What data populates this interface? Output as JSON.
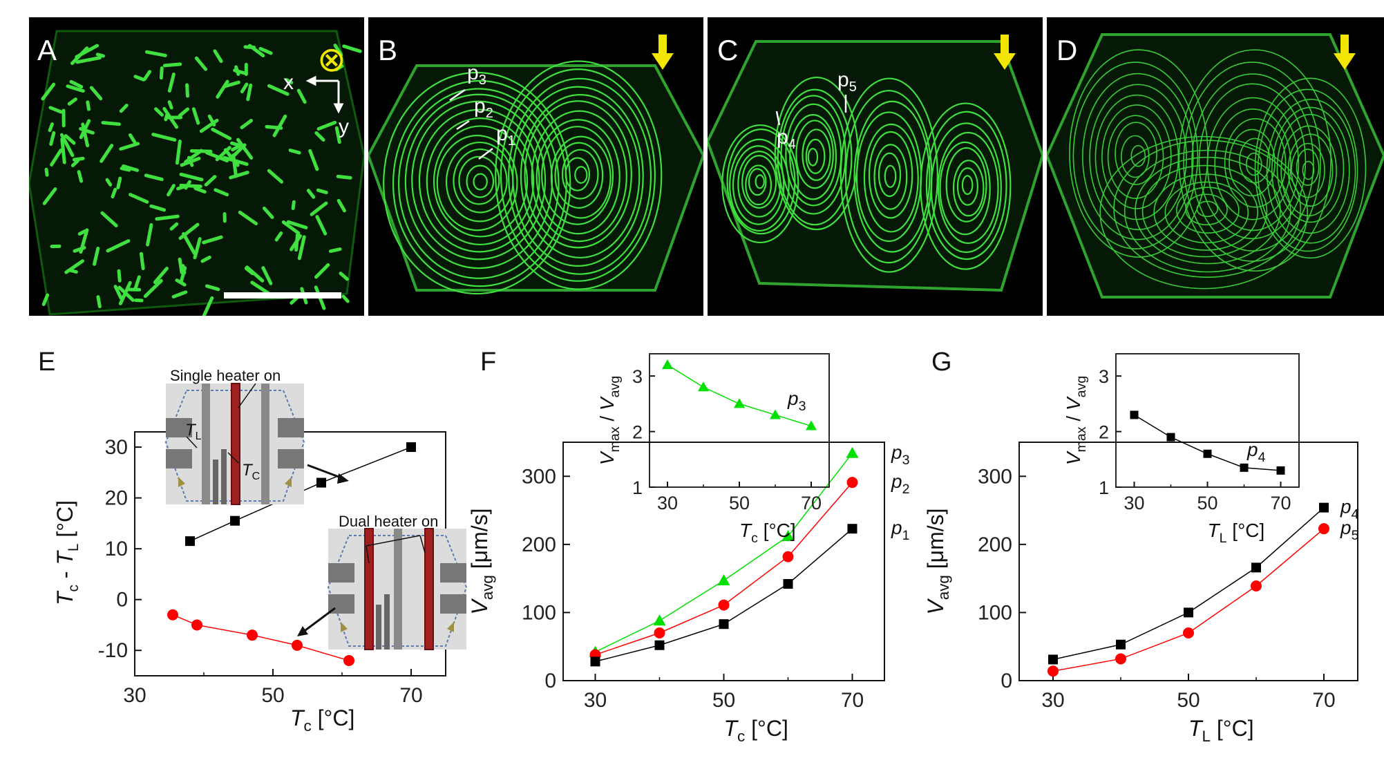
{
  "image_panels": [
    {
      "label": "A",
      "indicator": "⊗",
      "axes_labels": [
        "x",
        "y"
      ],
      "colors": {
        "streak": "#3fe03f",
        "indicator": "#f2e600"
      }
    },
    {
      "label": "B",
      "indicator": "arrow-down-icon",
      "point_labels": [
        {
          "base": "p",
          "sub": "3"
        },
        {
          "base": "p",
          "sub": "2"
        },
        {
          "base": "p",
          "sub": "1"
        }
      ]
    },
    {
      "label": "C",
      "indicator": "arrow-down-icon",
      "point_labels": [
        {
          "base": "p",
          "sub": "4"
        },
        {
          "base": "p",
          "sub": "5"
        }
      ]
    },
    {
      "label": "D",
      "indicator": "arrow-down-icon",
      "point_labels": []
    }
  ],
  "chart_data": [
    {
      "panel": "E",
      "type": "line",
      "xlabel": {
        "main": "T",
        "sub": "c",
        "unit": " [°C]"
      },
      "ylabel": {
        "a": "T",
        "a_sub": "c",
        "mid": " - ",
        "b": "T",
        "b_sub": "L",
        "unit": " [°C]"
      },
      "xlim": [
        30,
        75
      ],
      "ylim": [
        -15,
        33
      ],
      "xticks": [
        "30",
        "50",
        "70"
      ],
      "yticks": [
        "30",
        "20",
        "10",
        "0",
        "-10"
      ],
      "series": [
        {
          "color": "#000000",
          "marker": "square",
          "x": [
            38,
            44.5,
            57,
            70
          ],
          "y": [
            11.5,
            15.5,
            23,
            30
          ]
        },
        {
          "color": "#ff0000",
          "marker": "circle",
          "x": [
            35.5,
            39,
            47,
            53.5,
            61
          ],
          "y": [
            -3,
            -5,
            -7,
            -9,
            -12
          ]
        }
      ],
      "insets": [
        {
          "caption": "Single heater on",
          "tl": {
            "base": "T",
            "sub": "L"
          },
          "tc": {
            "base": "T",
            "sub": "C"
          }
        },
        {
          "caption": "Dual heater on"
        }
      ]
    },
    {
      "panel": "F",
      "type": "line",
      "xlabel": {
        "main": "T",
        "sub": "c",
        "unit": " [°C]"
      },
      "ylabel": {
        "main": "V",
        "sub": "avg",
        "unit": " [μm/s]"
      },
      "xlim": [
        25,
        75
      ],
      "ylim": [
        0,
        350
      ],
      "xticks": [
        "30",
        "50",
        "70"
      ],
      "yticks": [
        "0",
        "100",
        "200",
        "300"
      ],
      "x": [
        30,
        40,
        50,
        60,
        70
      ],
      "series": [
        {
          "name": "p3",
          "label": {
            "base": "p",
            "sub": "3"
          },
          "color": "#00e000",
          "marker": "triangle",
          "values": [
            42,
            88,
            147,
            212,
            334
          ]
        },
        {
          "name": "p2",
          "label": {
            "base": "p",
            "sub": "2"
          },
          "color": "#ff0000",
          "marker": "circle",
          "values": [
            38,
            70,
            111,
            182,
            291
          ]
        },
        {
          "name": "p1",
          "label": {
            "base": "p",
            "sub": "1"
          },
          "color": "#000000",
          "marker": "square",
          "values": [
            28,
            52,
            83,
            142,
            223
          ]
        }
      ],
      "inset": {
        "type": "line",
        "xlabel": {
          "main": "T",
          "sub": "c",
          "unit": " [°C]"
        },
        "ylabel": {
          "a": "V",
          "a_sub": "max",
          "mid": " / ",
          "b": "V",
          "b_sub": "avg"
        },
        "xlim": [
          25,
          75
        ],
        "ylim": [
          1,
          3.4
        ],
        "xticks": [
          "30",
          "50",
          "70"
        ],
        "yticks": [
          "1",
          "2",
          "3"
        ],
        "label": {
          "base": "p",
          "sub": "3"
        },
        "color": "#00e000",
        "marker": "triangle",
        "x": [
          30,
          40,
          50,
          60,
          70
        ],
        "values": [
          3.2,
          2.8,
          2.5,
          2.3,
          2.1
        ]
      }
    },
    {
      "panel": "G",
      "type": "line",
      "xlabel": {
        "main": "T",
        "sub": "L",
        "unit": " [°C]"
      },
      "ylabel": {
        "main": "V",
        "sub": "avg",
        "unit": " [μm/s]"
      },
      "xlim": [
        25,
        75
      ],
      "ylim": [
        0,
        350
      ],
      "xticks": [
        "30",
        "50",
        "70"
      ],
      "yticks": [
        "0",
        "100",
        "200",
        "300"
      ],
      "x": [
        30,
        40,
        50,
        60,
        70
      ],
      "series": [
        {
          "name": "p4",
          "label": {
            "base": "p",
            "sub": "4"
          },
          "color": "#000000",
          "marker": "square",
          "values": [
            31,
            53,
            100,
            166,
            254
          ]
        },
        {
          "name": "p5",
          "label": {
            "base": "p",
            "sub": "5"
          },
          "color": "#ff0000",
          "marker": "circle",
          "values": [
            14,
            32,
            70,
            139,
            223
          ]
        }
      ],
      "inset": {
        "type": "line",
        "xlabel": {
          "main": "T",
          "sub": "L",
          "unit": " [°C]"
        },
        "ylabel": {
          "a": "V",
          "a_sub": "max",
          "mid": " / ",
          "b": "V",
          "b_sub": "avg"
        },
        "xlim": [
          25,
          75
        ],
        "ylim": [
          1,
          3.4
        ],
        "xticks": [
          "30",
          "50",
          "70"
        ],
        "yticks": [
          "1",
          "2",
          "3"
        ],
        "label": {
          "base": "p",
          "sub": "4"
        },
        "color": "#000000",
        "marker": "square",
        "x": [
          30,
          40,
          50,
          60,
          70
        ],
        "values": [
          2.3,
          1.9,
          1.6,
          1.35,
          1.3
        ]
      }
    }
  ]
}
